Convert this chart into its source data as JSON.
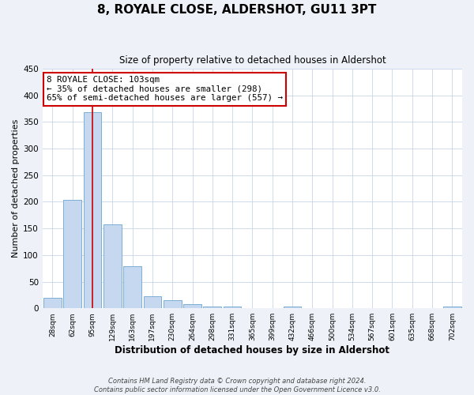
{
  "title": "8, ROYALE CLOSE, ALDERSHOT, GU11 3PT",
  "subtitle": "Size of property relative to detached houses in Aldershot",
  "xlabel": "Distribution of detached houses by size in Aldershot",
  "ylabel": "Number of detached properties",
  "bin_labels": [
    "28sqm",
    "62sqm",
    "95sqm",
    "129sqm",
    "163sqm",
    "197sqm",
    "230sqm",
    "264sqm",
    "298sqm",
    "331sqm",
    "365sqm",
    "399sqm",
    "432sqm",
    "466sqm",
    "500sqm",
    "534sqm",
    "567sqm",
    "601sqm",
    "635sqm",
    "668sqm",
    "702sqm"
  ],
  "bar_values": [
    20,
    203,
    368,
    157,
    79,
    23,
    15,
    8,
    4,
    4,
    0,
    0,
    3,
    0,
    0,
    0,
    0,
    0,
    0,
    0,
    3
  ],
  "bar_color": "#c5d8f0",
  "bar_edge_color": "#7bafd4",
  "vline_color": "#cc0000",
  "annotation_title": "8 ROYALE CLOSE: 103sqm",
  "annotation_line1": "← 35% of detached houses are smaller (298)",
  "annotation_line2": "65% of semi-detached houses are larger (557) →",
  "annotation_box_edge": "#cc0000",
  "ylim": [
    0,
    450
  ],
  "yticks": [
    0,
    50,
    100,
    150,
    200,
    250,
    300,
    350,
    400,
    450
  ],
  "footer_line1": "Contains HM Land Registry data © Crown copyright and database right 2024.",
  "footer_line2": "Contains public sector information licensed under the Open Government Licence v3.0.",
  "background_color": "#eef2f8",
  "plot_bg_color": "#ffffff",
  "grid_color": "#c8d4e8"
}
